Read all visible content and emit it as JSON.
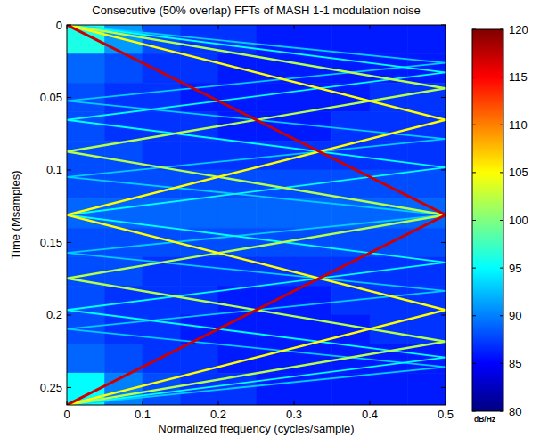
{
  "chart_data": {
    "type": "heatmap",
    "title": "Consecutive (50% overlap) FFTs of MASH 1-1 modulation noise",
    "x_label": "Normalized frequency (cycles/sample)",
    "y_label": "Time (Msamples)",
    "xlim": [
      0,
      0.5
    ],
    "xticks": [
      0,
      0.1,
      0.2,
      0.3,
      0.4,
      0.5
    ],
    "ylim": [
      0,
      0.262
    ],
    "yticks": [
      0,
      0.05,
      0.1,
      0.15,
      0.2,
      0.25
    ],
    "cell_x_edges": [
      0,
      0.05,
      0.1,
      0.15,
      0.2,
      0.25,
      0.3,
      0.35,
      0.4,
      0.45,
      0.5
    ],
    "cell_y_edges": [
      0,
      0.02,
      0.04,
      0.06,
      0.08,
      0.1,
      0.12,
      0.14,
      0.16,
      0.18,
      0.2,
      0.22,
      0.24,
      0.262
    ],
    "cells": [
      [
        96,
        91,
        88,
        87,
        87,
        86,
        86,
        86,
        86,
        86
      ],
      [
        89,
        88,
        87,
        87,
        86,
        86,
        86,
        86,
        86,
        86
      ],
      [
        88,
        87,
        87,
        86,
        86,
        86,
        86,
        86,
        87,
        87
      ],
      [
        88,
        87,
        87,
        87,
        86,
        86,
        86,
        87,
        87,
        87
      ],
      [
        88,
        88,
        87,
        87,
        87,
        87,
        87,
        87,
        87,
        87
      ],
      [
        88,
        88,
        88,
        88,
        88,
        88,
        88,
        88,
        88,
        88
      ],
      [
        89,
        89,
        89,
        89,
        89,
        89,
        89,
        89,
        89,
        89
      ],
      [
        88,
        88,
        88,
        88,
        88,
        88,
        88,
        88,
        88,
        88
      ],
      [
        88,
        88,
        87,
        87,
        87,
        87,
        87,
        87,
        87,
        87
      ],
      [
        88,
        87,
        87,
        87,
        86,
        86,
        86,
        87,
        87,
        87
      ],
      [
        88,
        87,
        87,
        86,
        86,
        86,
        86,
        86,
        87,
        87
      ],
      [
        89,
        88,
        87,
        87,
        86,
        86,
        86,
        86,
        86,
        86
      ],
      [
        95,
        90,
        88,
        87,
        87,
        86,
        86,
        86,
        86,
        86
      ]
    ],
    "tones": [
      {
        "x": [
          0,
          0.5,
          0,
          0.5,
          0,
          0.5,
          0,
          0.5,
          0,
          0.5,
          0
        ],
        "y": [
          0,
          0.0262,
          0.0524,
          0.0786,
          0.1048,
          0.131,
          0.1572,
          0.1834,
          0.2096,
          0.2358,
          0.262
        ],
        "level": 93
      },
      {
        "x": [
          0,
          0.5,
          0,
          0.5,
          0,
          0.5,
          0,
          0.5,
          0
        ],
        "y": [
          0,
          0.0328,
          0.0655,
          0.0983,
          0.131,
          0.1638,
          0.1965,
          0.2293,
          0.262
        ],
        "level": 95
      },
      {
        "x": [
          0,
          0.5,
          0,
          0.5,
          0,
          0.5,
          0
        ],
        "y": [
          0,
          0.0437,
          0.0873,
          0.131,
          0.1747,
          0.2183,
          0.262
        ],
        "level": 102
      },
      {
        "x": [
          0,
          0.5,
          0,
          0.5,
          0
        ],
        "y": [
          0,
          0.0655,
          0.131,
          0.1965,
          0.262
        ],
        "level": 105
      },
      {
        "x": [
          0,
          0.5,
          0
        ],
        "y": [
          0,
          0.131,
          0.262
        ],
        "level": 117
      }
    ],
    "colorbar": {
      "range": [
        80,
        120
      ],
      "ticks": [
        80,
        85,
        90,
        95,
        100,
        105,
        110,
        115,
        120
      ],
      "label": "dB/Hz"
    }
  }
}
